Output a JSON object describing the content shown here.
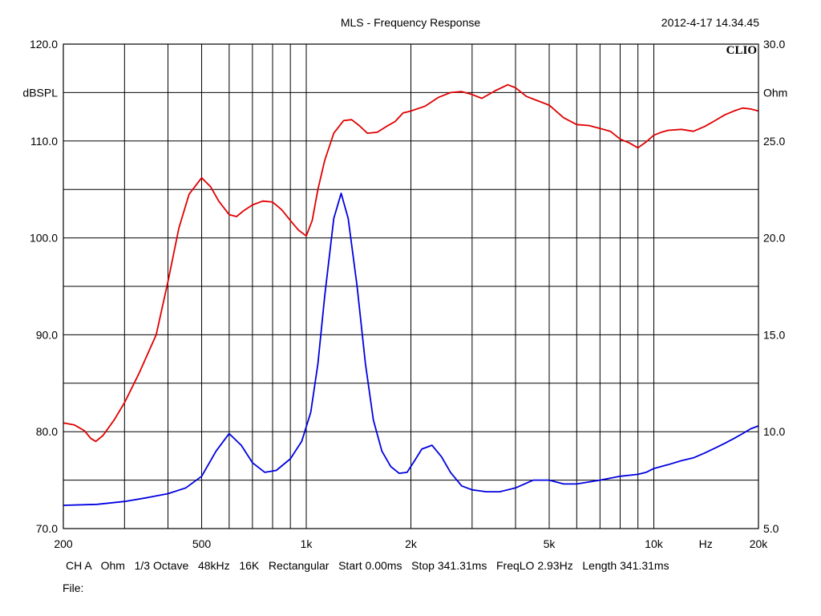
{
  "title": "MLS - Frequency Response",
  "timestamp": "2012-4-17 14.34.45",
  "brand": "CLIO",
  "chart_data": {
    "type": "line",
    "xscale": "log",
    "xlim": [
      200,
      20000
    ],
    "x_ticks": [
      {
        "value": 200,
        "label": "200"
      },
      {
        "value": 500,
        "label": "500"
      },
      {
        "value": 1000,
        "label": "1k"
      },
      {
        "value": 2000,
        "label": "2k"
      },
      {
        "value": 5000,
        "label": "5k"
      },
      {
        "value": 10000,
        "label": "10k"
      },
      {
        "value": 20000,
        "label": "20k"
      }
    ],
    "x_unit_label": "Hz",
    "grid": true,
    "left_axis": {
      "unit": "dBSPL",
      "ylim": [
        70,
        120
      ],
      "ticks": [
        "70.0",
        "80.0",
        "90.0",
        "100.0",
        "110.0",
        "120.0"
      ],
      "tick_values": [
        70,
        80,
        90,
        100,
        110,
        120
      ]
    },
    "right_axis": {
      "unit": "Ohm",
      "ylim": [
        5,
        30
      ],
      "ticks": [
        "5.0",
        "10.0",
        "15.0",
        "20.0",
        "25.0",
        "30.0"
      ],
      "tick_values": [
        5,
        10,
        15,
        20,
        25,
        30
      ]
    },
    "series": [
      {
        "axis": "left",
        "color": "#e00000",
        "x": [
          200,
          215,
          230,
          240,
          248,
          260,
          280,
          300,
          330,
          370,
          400,
          430,
          460,
          500,
          530,
          560,
          600,
          630,
          660,
          700,
          750,
          800,
          850,
          900,
          950,
          1000,
          1040,
          1080,
          1130,
          1200,
          1280,
          1350,
          1420,
          1500,
          1600,
          1700,
          1800,
          1900,
          2000,
          2200,
          2400,
          2600,
          2800,
          3000,
          3200,
          3500,
          3800,
          4000,
          4300,
          4600,
          5000,
          5500,
          6000,
          6500,
          7000,
          7500,
          8000,
          8500,
          9000,
          9500,
          10000,
          10500,
          11000,
          12000,
          13000,
          14000,
          15000,
          16000,
          17000,
          18000,
          19000,
          20000
        ],
        "y": [
          80.9,
          80.7,
          80.1,
          79.3,
          79.0,
          79.6,
          81.2,
          83.0,
          86.0,
          90.0,
          95.5,
          101.0,
          104.5,
          106.2,
          105.3,
          103.8,
          102.4,
          102.2,
          102.8,
          103.4,
          103.8,
          103.7,
          102.9,
          101.8,
          100.8,
          100.2,
          101.8,
          105.0,
          108.0,
          110.8,
          112.1,
          112.2,
          111.6,
          110.8,
          110.9,
          111.5,
          112.0,
          112.9,
          113.1,
          113.6,
          114.5,
          115.0,
          115.1,
          114.8,
          114.4,
          115.2,
          115.8,
          115.5,
          114.6,
          114.2,
          113.7,
          112.4,
          111.7,
          111.6,
          111.3,
          111.0,
          110.2,
          109.8,
          109.3,
          109.9,
          110.6,
          110.9,
          111.1,
          111.2,
          111.0,
          111.5,
          112.1,
          112.7,
          113.1,
          113.4,
          113.3,
          113.1
        ]
      },
      {
        "axis": "right",
        "color": "#0000e0",
        "x": [
          200,
          250,
          300,
          350,
          400,
          450,
          500,
          550,
          600,
          650,
          700,
          760,
          820,
          900,
          970,
          1030,
          1080,
          1130,
          1200,
          1260,
          1320,
          1400,
          1480,
          1560,
          1650,
          1750,
          1850,
          1950,
          2050,
          2150,
          2300,
          2450,
          2600,
          2800,
          3000,
          3300,
          3600,
          4000,
          4500,
          5000,
          5500,
          6000,
          7000,
          8000,
          9000,
          9500,
          10000,
          11000,
          12000,
          13000,
          14000,
          15000,
          16000,
          17000,
          18000,
          19000,
          20000
        ],
        "y": [
          6.2,
          6.25,
          6.4,
          6.6,
          6.8,
          7.1,
          7.7,
          9.0,
          9.9,
          9.3,
          8.4,
          7.9,
          8.0,
          8.6,
          9.5,
          11.0,
          13.5,
          17.0,
          21.0,
          22.3,
          21.0,
          17.5,
          13.5,
          10.6,
          9.0,
          8.2,
          7.85,
          7.9,
          8.5,
          9.1,
          9.3,
          8.7,
          7.9,
          7.2,
          7.0,
          6.9,
          6.9,
          7.1,
          7.5,
          7.5,
          7.3,
          7.3,
          7.5,
          7.7,
          7.8,
          7.9,
          8.1,
          8.3,
          8.5,
          8.65,
          8.9,
          9.15,
          9.4,
          9.65,
          9.9,
          10.15,
          10.3
        ]
      }
    ]
  },
  "footer": {
    "channel": "CH A",
    "unit": "Ohm",
    "smoothing": "1/3 Octave",
    "sample_rate": "48kHz",
    "size": "16K",
    "window": "Rectangular",
    "start": "Start 0.00ms",
    "stop": "Stop 341.31ms",
    "freqlo": "FreqLO 2.93Hz",
    "length": "Length 341.31ms"
  },
  "file_label": "File:"
}
